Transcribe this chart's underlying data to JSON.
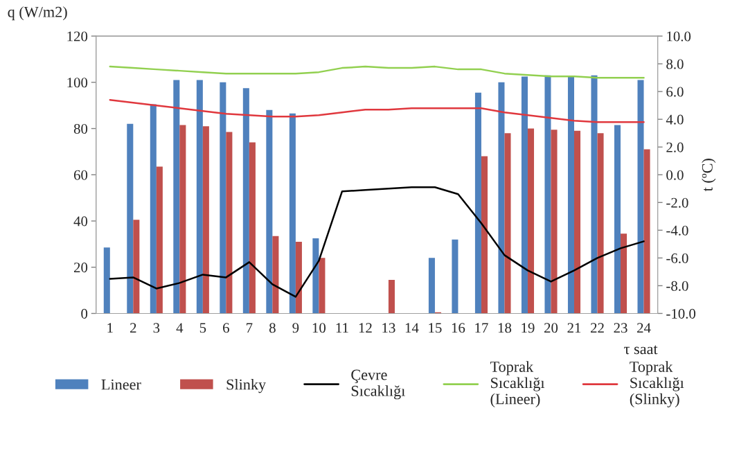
{
  "chart_data": {
    "type": "bar",
    "xlabel": "τ saat",
    "ylabel": "q (W/m2)",
    "y2label": "t (ºC)",
    "categories": [
      "1",
      "2",
      "3",
      "4",
      "5",
      "6",
      "7",
      "8",
      "9",
      "10",
      "11",
      "12",
      "13",
      "14",
      "15",
      "16",
      "17",
      "18",
      "19",
      "20",
      "21",
      "22",
      "23",
      "24"
    ],
    "series": [
      {
        "name": "Lineer",
        "color": "#4f81bd",
        "values": [
          28.5,
          82,
          90.5,
          101,
          101,
          100,
          97.5,
          88,
          86.5,
          32.5,
          0,
          0,
          0,
          0,
          24,
          32,
          95.5,
          100,
          102.5,
          103,
          102.5,
          103,
          81.5,
          101
        ]
      },
      {
        "name": "Slinky",
        "color": "#c0504d",
        "values": [
          0,
          40.5,
          63.5,
          81.5,
          81,
          78.5,
          74,
          33.5,
          31,
          24,
          0,
          0,
          14.5,
          0,
          0.5,
          0,
          68,
          78,
          80,
          79.5,
          79,
          78,
          34.5,
          71
        ]
      },
      {
        "name": "Çevre Sıcaklığı",
        "type": "line",
        "axis": "y2",
        "color": "#000000",
        "values": [
          -7.5,
          -7.4,
          -8.2,
          -7.8,
          -7.2,
          -7.4,
          -6.3,
          -7.9,
          -8.8,
          -6.2,
          -1.2,
          -1.1,
          -1.0,
          -0.9,
          -0.9,
          -1.4,
          -3.5,
          -5.8,
          -6.9,
          -7.7,
          -6.9,
          -6.0,
          -5.3,
          -4.8
        ]
      },
      {
        "name": "Toprak Sıcaklığı (Lineer)",
        "type": "line",
        "axis": "y2",
        "color": "#92d050",
        "values": [
          7.8,
          7.7,
          7.6,
          7.5,
          7.4,
          7.3,
          7.3,
          7.3,
          7.3,
          7.4,
          7.7,
          7.8,
          7.7,
          7.7,
          7.8,
          7.6,
          7.6,
          7.3,
          7.2,
          7.1,
          7.1,
          7.0,
          7.0,
          7.0
        ]
      },
      {
        "name": "Toprak Sıcaklığı (Slinky)",
        "type": "line",
        "axis": "y2",
        "color": "#e0383e",
        "values": [
          5.4,
          5.2,
          5.0,
          4.8,
          4.6,
          4.4,
          4.3,
          4.2,
          4.2,
          4.3,
          4.5,
          4.7,
          4.7,
          4.8,
          4.8,
          4.8,
          4.8,
          4.5,
          4.3,
          4.1,
          3.9,
          3.8,
          3.8,
          3.8
        ]
      }
    ],
    "ylim": [
      0,
      120
    ],
    "yticks": [
      0,
      20,
      40,
      60,
      80,
      100,
      120
    ],
    "y2lim": [
      -10,
      10
    ],
    "y2ticks": [
      {
        "value": -10,
        "label": "-10.0"
      },
      {
        "value": -8,
        "label": "-8.0"
      },
      {
        "value": -6,
        "label": "-6.0"
      },
      {
        "value": -4,
        "label": "-4.0"
      },
      {
        "value": -2,
        "label": "-2.0"
      },
      {
        "value": 0,
        "label": "0.0"
      },
      {
        "value": 2,
        "label": "2.0"
      },
      {
        "value": 4,
        "label": "4.0"
      },
      {
        "value": 6,
        "label": "6.0"
      },
      {
        "value": 8,
        "label": "8.0"
      },
      {
        "value": 10,
        "label": "10.0"
      }
    ],
    "grid": false,
    "legend": "bottom"
  }
}
